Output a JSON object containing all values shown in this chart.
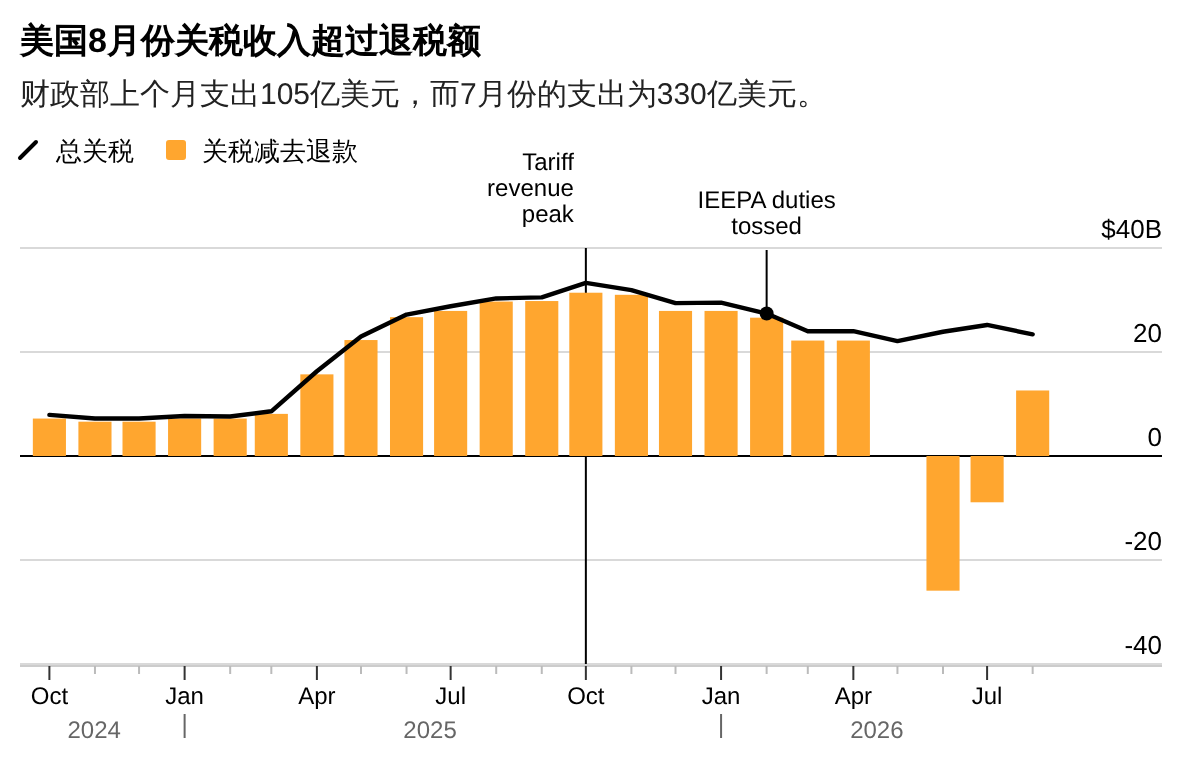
{
  "chart_data": {
    "type": "bar",
    "title": "美国8月份关税收入超过退税额",
    "subtitle": "财政部上个月支出105亿美元，而7月份的支出为330亿美元。",
    "x": [
      "2024-10",
      "2024-11",
      "2024-12",
      "2025-01",
      "2025-02",
      "2025-03",
      "2025-04",
      "2025-05",
      "2025-06",
      "2025-07",
      "2025-08",
      "2025-09",
      "2025-10",
      "2025-11",
      "2025-12",
      "2026-01",
      "2026-02",
      "2026-03",
      "2026-04",
      "2026-05",
      "2026-06",
      "2026-07",
      "2026-08"
    ],
    "series": [
      {
        "name": "总关税",
        "type": "line",
        "color": "#000000",
        "values": [
          7.9,
          7.2,
          7.2,
          7.7,
          7.6,
          8.6,
          16.3,
          23.0,
          27.2,
          28.8,
          30.3,
          30.5,
          33.3,
          31.9,
          29.4,
          29.5,
          27.4,
          24.0,
          24.0,
          22.1,
          23.9,
          25.2,
          23.4
        ]
      },
      {
        "name": "关税减去退款",
        "color": "#ffa62f",
        "values": [
          7.2,
          6.6,
          6.6,
          7.2,
          7.2,
          8.1,
          15.7,
          22.3,
          26.7,
          27.9,
          29.7,
          29.8,
          31.4,
          31.0,
          27.9,
          27.9,
          26.6,
          22.2,
          22.2,
          null,
          -25.9,
          -8.9,
          12.6
        ]
      }
    ],
    "xlim": [
      "2024-09-11",
      "2026-10-28"
    ],
    "xticks": [
      {
        "value": "2024-10",
        "label": "Oct"
      },
      {
        "value": "2024-11",
        "label": null
      },
      {
        "value": "2024-12",
        "label": null
      },
      {
        "value": "2025-01",
        "label": "Jan"
      },
      {
        "value": "2025-02",
        "label": null
      },
      {
        "value": "2025-03",
        "label": null
      },
      {
        "value": "2025-04",
        "label": "Apr"
      },
      {
        "value": "2025-05",
        "label": null
      },
      {
        "value": "2025-06",
        "label": null
      },
      {
        "value": "2025-07",
        "label": "Jul"
      },
      {
        "value": "2025-08",
        "label": null
      },
      {
        "value": "2025-09",
        "label": null
      },
      {
        "value": "2025-10",
        "label": "Oct"
      },
      {
        "value": "2025-11",
        "label": null
      },
      {
        "value": "2025-12",
        "label": null
      },
      {
        "value": "2026-01",
        "label": "Jan"
      },
      {
        "value": "2026-02",
        "label": null
      },
      {
        "value": "2026-03",
        "label": null
      },
      {
        "value": "2026-04",
        "label": "Apr"
      },
      {
        "value": "2026-05",
        "label": null
      },
      {
        "value": "2026-06",
        "label": null
      },
      {
        "value": "2026-07",
        "label": "Jul"
      },
      {
        "value": "2026-08",
        "label": null
      }
    ],
    "ylim": [
      -40,
      40
    ],
    "yticks": [
      {
        "value": 40,
        "label": "$40B"
      },
      20,
      0,
      -20,
      -40
    ],
    "grid": "y",
    "legend": "top left",
    "ref_lines": [
      {
        "axis": "x",
        "value": "2025-10",
        "label": "Tariff\nrevenue\npeak",
        "color": "#000000"
      }
    ],
    "annotations": [
      {
        "text": "IEEPA duties\ntossed",
        "x": "2026-02",
        "y": 27.4
      },
      "2024",
      "2025",
      "2026"
    ]
  }
}
